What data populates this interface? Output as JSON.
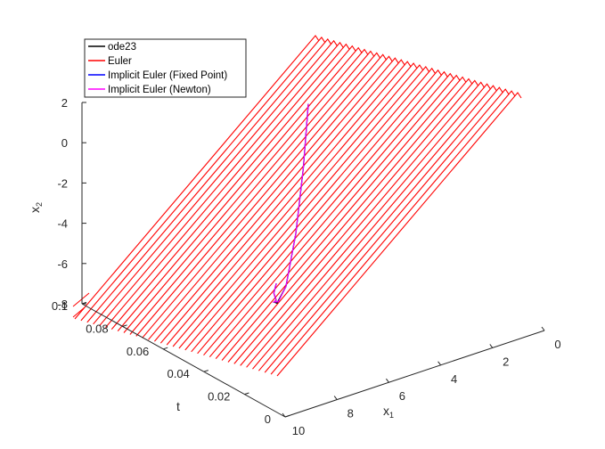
{
  "chart_data": {
    "type": "line",
    "projection": "3d",
    "title": "",
    "xlabel": "x",
    "xlabel_sub": "1",
    "ylabel": "t",
    "zlabel": "x",
    "zlabel_sub": "2",
    "xlim": [
      0,
      10
    ],
    "ylim": [
      0,
      0.1
    ],
    "zlim": [
      -8,
      2
    ],
    "x_ticks": [
      "0",
      "2",
      "4",
      "6",
      "8",
      "10"
    ],
    "y_ticks": [
      "0",
      "0.02",
      "0.04",
      "0.06",
      "0.08",
      "0.1"
    ],
    "z_ticks": [
      "-8",
      "-6",
      "-4",
      "-2",
      "0",
      "2"
    ],
    "grid": false,
    "legend_position": "top-left",
    "series": [
      {
        "name": "ode23",
        "color": "#000000",
        "points": [
          [
            1.9,
            0.092,
            -1.1
          ],
          [
            3.5,
            0.074,
            -2.6
          ],
          [
            5.2,
            0.056,
            -4.1
          ],
          [
            6.6,
            0.043,
            -5.4
          ],
          [
            7.1,
            0.041,
            -5.9
          ],
          [
            7.3,
            0.04,
            -5.7
          ],
          [
            7.6,
            0.035,
            -5.2
          ],
          [
            8.4,
            0.026,
            -4.0
          ],
          [
            9.4,
            0.012,
            -2.3
          ]
        ]
      },
      {
        "name": "Euler",
        "color": "#ff0000",
        "style": "dense sawtooth strokes",
        "x_range": [
          0.04,
          9.9
        ],
        "z_range": [
          -8,
          2
        ],
        "strokes": 34
      },
      {
        "name": "Implicit Euler (Fixed Point)",
        "color": "#0000ff",
        "points": [
          [
            1.9,
            0.092,
            -1.1
          ],
          [
            3.5,
            0.074,
            -2.6
          ],
          [
            5.2,
            0.056,
            -4.1
          ],
          [
            6.6,
            0.043,
            -5.4
          ],
          [
            7.05,
            0.041,
            -5.85
          ],
          [
            7.3,
            0.04,
            -5.7
          ],
          [
            7.6,
            0.035,
            -5.2
          ],
          [
            8.4,
            0.026,
            -4.0
          ],
          [
            9.4,
            0.012,
            -2.3
          ]
        ]
      },
      {
        "name": "Implicit Euler (Newton)",
        "color": "#ff00ff",
        "points": [
          [
            1.9,
            0.092,
            -1.1
          ],
          [
            3.5,
            0.074,
            -2.6
          ],
          [
            5.2,
            0.056,
            -4.1
          ],
          [
            6.6,
            0.043,
            -5.4
          ],
          [
            7.05,
            0.041,
            -5.85
          ],
          [
            7.3,
            0.04,
            -5.7
          ],
          [
            7.6,
            0.035,
            -5.2
          ],
          [
            8.4,
            0.026,
            -4.0
          ],
          [
            9.4,
            0.012,
            -2.3
          ]
        ]
      }
    ]
  }
}
